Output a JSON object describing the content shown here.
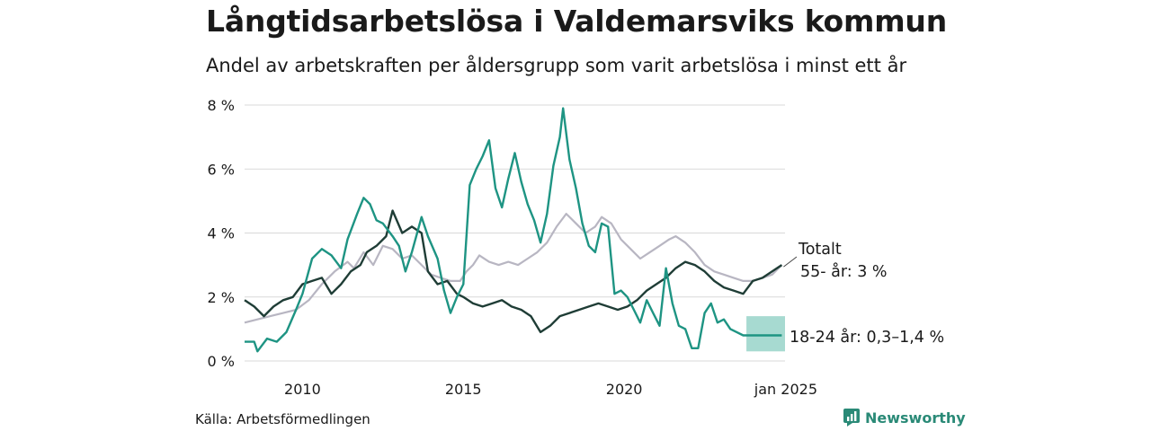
{
  "title": "Långtidsarbetslösa i Valdemarsviks kommun",
  "subtitle": "Andel av arbetskraften per åldersgrupp som varit arbetslösa i minst ett år",
  "source": "Källa: Arbetsförmedlingen",
  "brand": "Newsworthy",
  "colors": {
    "total": "#b8b6c2",
    "age55": "#1f3d36",
    "age18_24": "#1e9483",
    "band": "#9dd6cc",
    "grid": "#d9d9d9",
    "brand": "#2a8a77"
  },
  "chart_data": {
    "type": "line",
    "ylim": [
      0,
      8
    ],
    "xlim": [
      2008.2,
      2025.0
    ],
    "yticks": [
      0,
      2,
      4,
      6,
      8
    ],
    "ytick_labels": [
      "0 %",
      "2 %",
      "4 %",
      "6 %",
      "8 %"
    ],
    "xtick_labels": [
      {
        "value": 2010,
        "label": "2010"
      },
      {
        "value": 2015,
        "label": "2015"
      },
      {
        "value": 2020,
        "label": "2020"
      },
      {
        "value": 2025,
        "label": "jan 2025"
      }
    ],
    "series": [
      {
        "name": "Totalt",
        "key": "total",
        "label": "Totalt",
        "points": [
          [
            2008.2,
            1.2
          ],
          [
            2008.6,
            1.3
          ],
          [
            2009.0,
            1.4
          ],
          [
            2009.4,
            1.5
          ],
          [
            2009.8,
            1.6
          ],
          [
            2010.2,
            1.9
          ],
          [
            2010.6,
            2.4
          ],
          [
            2011.0,
            2.8
          ],
          [
            2011.4,
            3.1
          ],
          [
            2011.6,
            2.9
          ],
          [
            2011.9,
            3.4
          ],
          [
            2012.2,
            3.0
          ],
          [
            2012.5,
            3.6
          ],
          [
            2012.8,
            3.5
          ],
          [
            2013.1,
            3.2
          ],
          [
            2013.4,
            3.3
          ],
          [
            2013.7,
            3.0
          ],
          [
            2014.0,
            2.7
          ],
          [
            2014.3,
            2.6
          ],
          [
            2014.6,
            2.5
          ],
          [
            2014.9,
            2.5
          ],
          [
            2015.1,
            2.8
          ],
          [
            2015.3,
            3.0
          ],
          [
            2015.5,
            3.3
          ],
          [
            2015.8,
            3.1
          ],
          [
            2016.1,
            3.0
          ],
          [
            2016.4,
            3.1
          ],
          [
            2016.7,
            3.0
          ],
          [
            2017.0,
            3.2
          ],
          [
            2017.3,
            3.4
          ],
          [
            2017.6,
            3.7
          ],
          [
            2017.9,
            4.2
          ],
          [
            2018.2,
            4.6
          ],
          [
            2018.5,
            4.3
          ],
          [
            2018.8,
            4.0
          ],
          [
            2019.1,
            4.2
          ],
          [
            2019.3,
            4.5
          ],
          [
            2019.6,
            4.3
          ],
          [
            2019.9,
            3.8
          ],
          [
            2020.2,
            3.5
          ],
          [
            2020.5,
            3.2
          ],
          [
            2020.8,
            3.4
          ],
          [
            2021.1,
            3.6
          ],
          [
            2021.4,
            3.8
          ],
          [
            2021.6,
            3.9
          ],
          [
            2021.9,
            3.7
          ],
          [
            2022.2,
            3.4
          ],
          [
            2022.5,
            3.0
          ],
          [
            2022.8,
            2.8
          ],
          [
            2023.1,
            2.7
          ],
          [
            2023.4,
            2.6
          ],
          [
            2023.7,
            2.5
          ],
          [
            2024.0,
            2.5
          ],
          [
            2024.3,
            2.6
          ],
          [
            2024.6,
            2.7
          ],
          [
            2024.9,
            3.0
          ]
        ]
      },
      {
        "name": "55- år",
        "key": "age55",
        "label": "55- år:  3 %",
        "points": [
          [
            2008.2,
            1.9
          ],
          [
            2008.5,
            1.7
          ],
          [
            2008.8,
            1.4
          ],
          [
            2009.1,
            1.7
          ],
          [
            2009.4,
            1.9
          ],
          [
            2009.7,
            2.0
          ],
          [
            2010.0,
            2.4
          ],
          [
            2010.3,
            2.5
          ],
          [
            2010.6,
            2.6
          ],
          [
            2010.9,
            2.1
          ],
          [
            2011.2,
            2.4
          ],
          [
            2011.5,
            2.8
          ],
          [
            2011.8,
            3.0
          ],
          [
            2012.0,
            3.4
          ],
          [
            2012.3,
            3.6
          ],
          [
            2012.6,
            3.9
          ],
          [
            2012.8,
            4.7
          ],
          [
            2013.1,
            4.0
          ],
          [
            2013.4,
            4.2
          ],
          [
            2013.7,
            4.0
          ],
          [
            2013.9,
            2.8
          ],
          [
            2014.2,
            2.4
          ],
          [
            2014.5,
            2.5
          ],
          [
            2014.8,
            2.1
          ],
          [
            2015.0,
            2.0
          ],
          [
            2015.3,
            1.8
          ],
          [
            2015.6,
            1.7
          ],
          [
            2015.9,
            1.8
          ],
          [
            2016.2,
            1.9
          ],
          [
            2016.5,
            1.7
          ],
          [
            2016.8,
            1.6
          ],
          [
            2017.1,
            1.4
          ],
          [
            2017.4,
            0.9
          ],
          [
            2017.7,
            1.1
          ],
          [
            2018.0,
            1.4
          ],
          [
            2018.3,
            1.5
          ],
          [
            2018.6,
            1.6
          ],
          [
            2018.9,
            1.7
          ],
          [
            2019.2,
            1.8
          ],
          [
            2019.5,
            1.7
          ],
          [
            2019.8,
            1.6
          ],
          [
            2020.1,
            1.7
          ],
          [
            2020.4,
            1.9
          ],
          [
            2020.7,
            2.2
          ],
          [
            2021.0,
            2.4
          ],
          [
            2021.3,
            2.6
          ],
          [
            2021.6,
            2.9
          ],
          [
            2021.9,
            3.1
          ],
          [
            2022.2,
            3.0
          ],
          [
            2022.5,
            2.8
          ],
          [
            2022.8,
            2.5
          ],
          [
            2023.1,
            2.3
          ],
          [
            2023.4,
            2.2
          ],
          [
            2023.7,
            2.1
          ],
          [
            2024.0,
            2.5
          ],
          [
            2024.3,
            2.6
          ],
          [
            2024.6,
            2.8
          ],
          [
            2024.9,
            3.0
          ]
        ]
      },
      {
        "name": "18-24 år",
        "key": "age18_24",
        "label": "18-24 år: 0,3–1,4 %",
        "points": [
          [
            2008.2,
            0.6
          ],
          [
            2008.5,
            0.6
          ],
          [
            2008.6,
            0.3
          ],
          [
            2008.9,
            0.7
          ],
          [
            2009.2,
            0.6
          ],
          [
            2009.5,
            0.9
          ],
          [
            2009.8,
            1.6
          ],
          [
            2010.0,
            2.1
          ],
          [
            2010.3,
            3.2
          ],
          [
            2010.6,
            3.5
          ],
          [
            2010.9,
            3.3
          ],
          [
            2011.2,
            2.9
          ],
          [
            2011.4,
            3.8
          ],
          [
            2011.7,
            4.6
          ],
          [
            2011.9,
            5.1
          ],
          [
            2012.1,
            4.9
          ],
          [
            2012.3,
            4.4
          ],
          [
            2012.5,
            4.3
          ],
          [
            2012.8,
            3.9
          ],
          [
            2013.0,
            3.6
          ],
          [
            2013.2,
            2.8
          ],
          [
            2013.4,
            3.4
          ],
          [
            2013.7,
            4.5
          ],
          [
            2013.9,
            3.9
          ],
          [
            2014.2,
            3.2
          ],
          [
            2014.4,
            2.2
          ],
          [
            2014.6,
            1.5
          ],
          [
            2014.8,
            2.0
          ],
          [
            2015.0,
            2.4
          ],
          [
            2015.2,
            5.5
          ],
          [
            2015.4,
            6.0
          ],
          [
            2015.6,
            6.4
          ],
          [
            2015.8,
            6.9
          ],
          [
            2016.0,
            5.4
          ],
          [
            2016.2,
            4.8
          ],
          [
            2016.4,
            5.7
          ],
          [
            2016.6,
            6.5
          ],
          [
            2016.8,
            5.6
          ],
          [
            2017.0,
            4.9
          ],
          [
            2017.2,
            4.4
          ],
          [
            2017.4,
            3.7
          ],
          [
            2017.6,
            4.6
          ],
          [
            2017.8,
            6.1
          ],
          [
            2018.0,
            7.0
          ],
          [
            2018.1,
            7.9
          ],
          [
            2018.3,
            6.3
          ],
          [
            2018.5,
            5.4
          ],
          [
            2018.7,
            4.3
          ],
          [
            2018.9,
            3.6
          ],
          [
            2019.1,
            3.4
          ],
          [
            2019.3,
            4.3
          ],
          [
            2019.5,
            4.2
          ],
          [
            2019.7,
            2.1
          ],
          [
            2019.9,
            2.2
          ],
          [
            2020.1,
            2.0
          ],
          [
            2020.3,
            1.6
          ],
          [
            2020.5,
            1.2
          ],
          [
            2020.7,
            1.9
          ],
          [
            2020.9,
            1.5
          ],
          [
            2021.1,
            1.1
          ],
          [
            2021.3,
            2.9
          ],
          [
            2021.5,
            1.8
          ],
          [
            2021.7,
            1.1
          ],
          [
            2021.9,
            1.0
          ],
          [
            2022.1,
            0.4
          ],
          [
            2022.3,
            0.4
          ],
          [
            2022.5,
            1.5
          ],
          [
            2022.7,
            1.8
          ],
          [
            2022.9,
            1.2
          ],
          [
            2023.1,
            1.3
          ],
          [
            2023.3,
            1.0
          ],
          [
            2023.5,
            0.9
          ],
          [
            2023.7,
            0.8
          ],
          [
            2024.0,
            0.8
          ],
          [
            2024.3,
            0.8
          ],
          [
            2024.6,
            0.8
          ],
          [
            2024.9,
            0.8
          ]
        ],
        "band": {
          "from": 2023.8,
          "to": 2025.0,
          "low": 0.3,
          "high": 1.4
        }
      }
    ]
  }
}
